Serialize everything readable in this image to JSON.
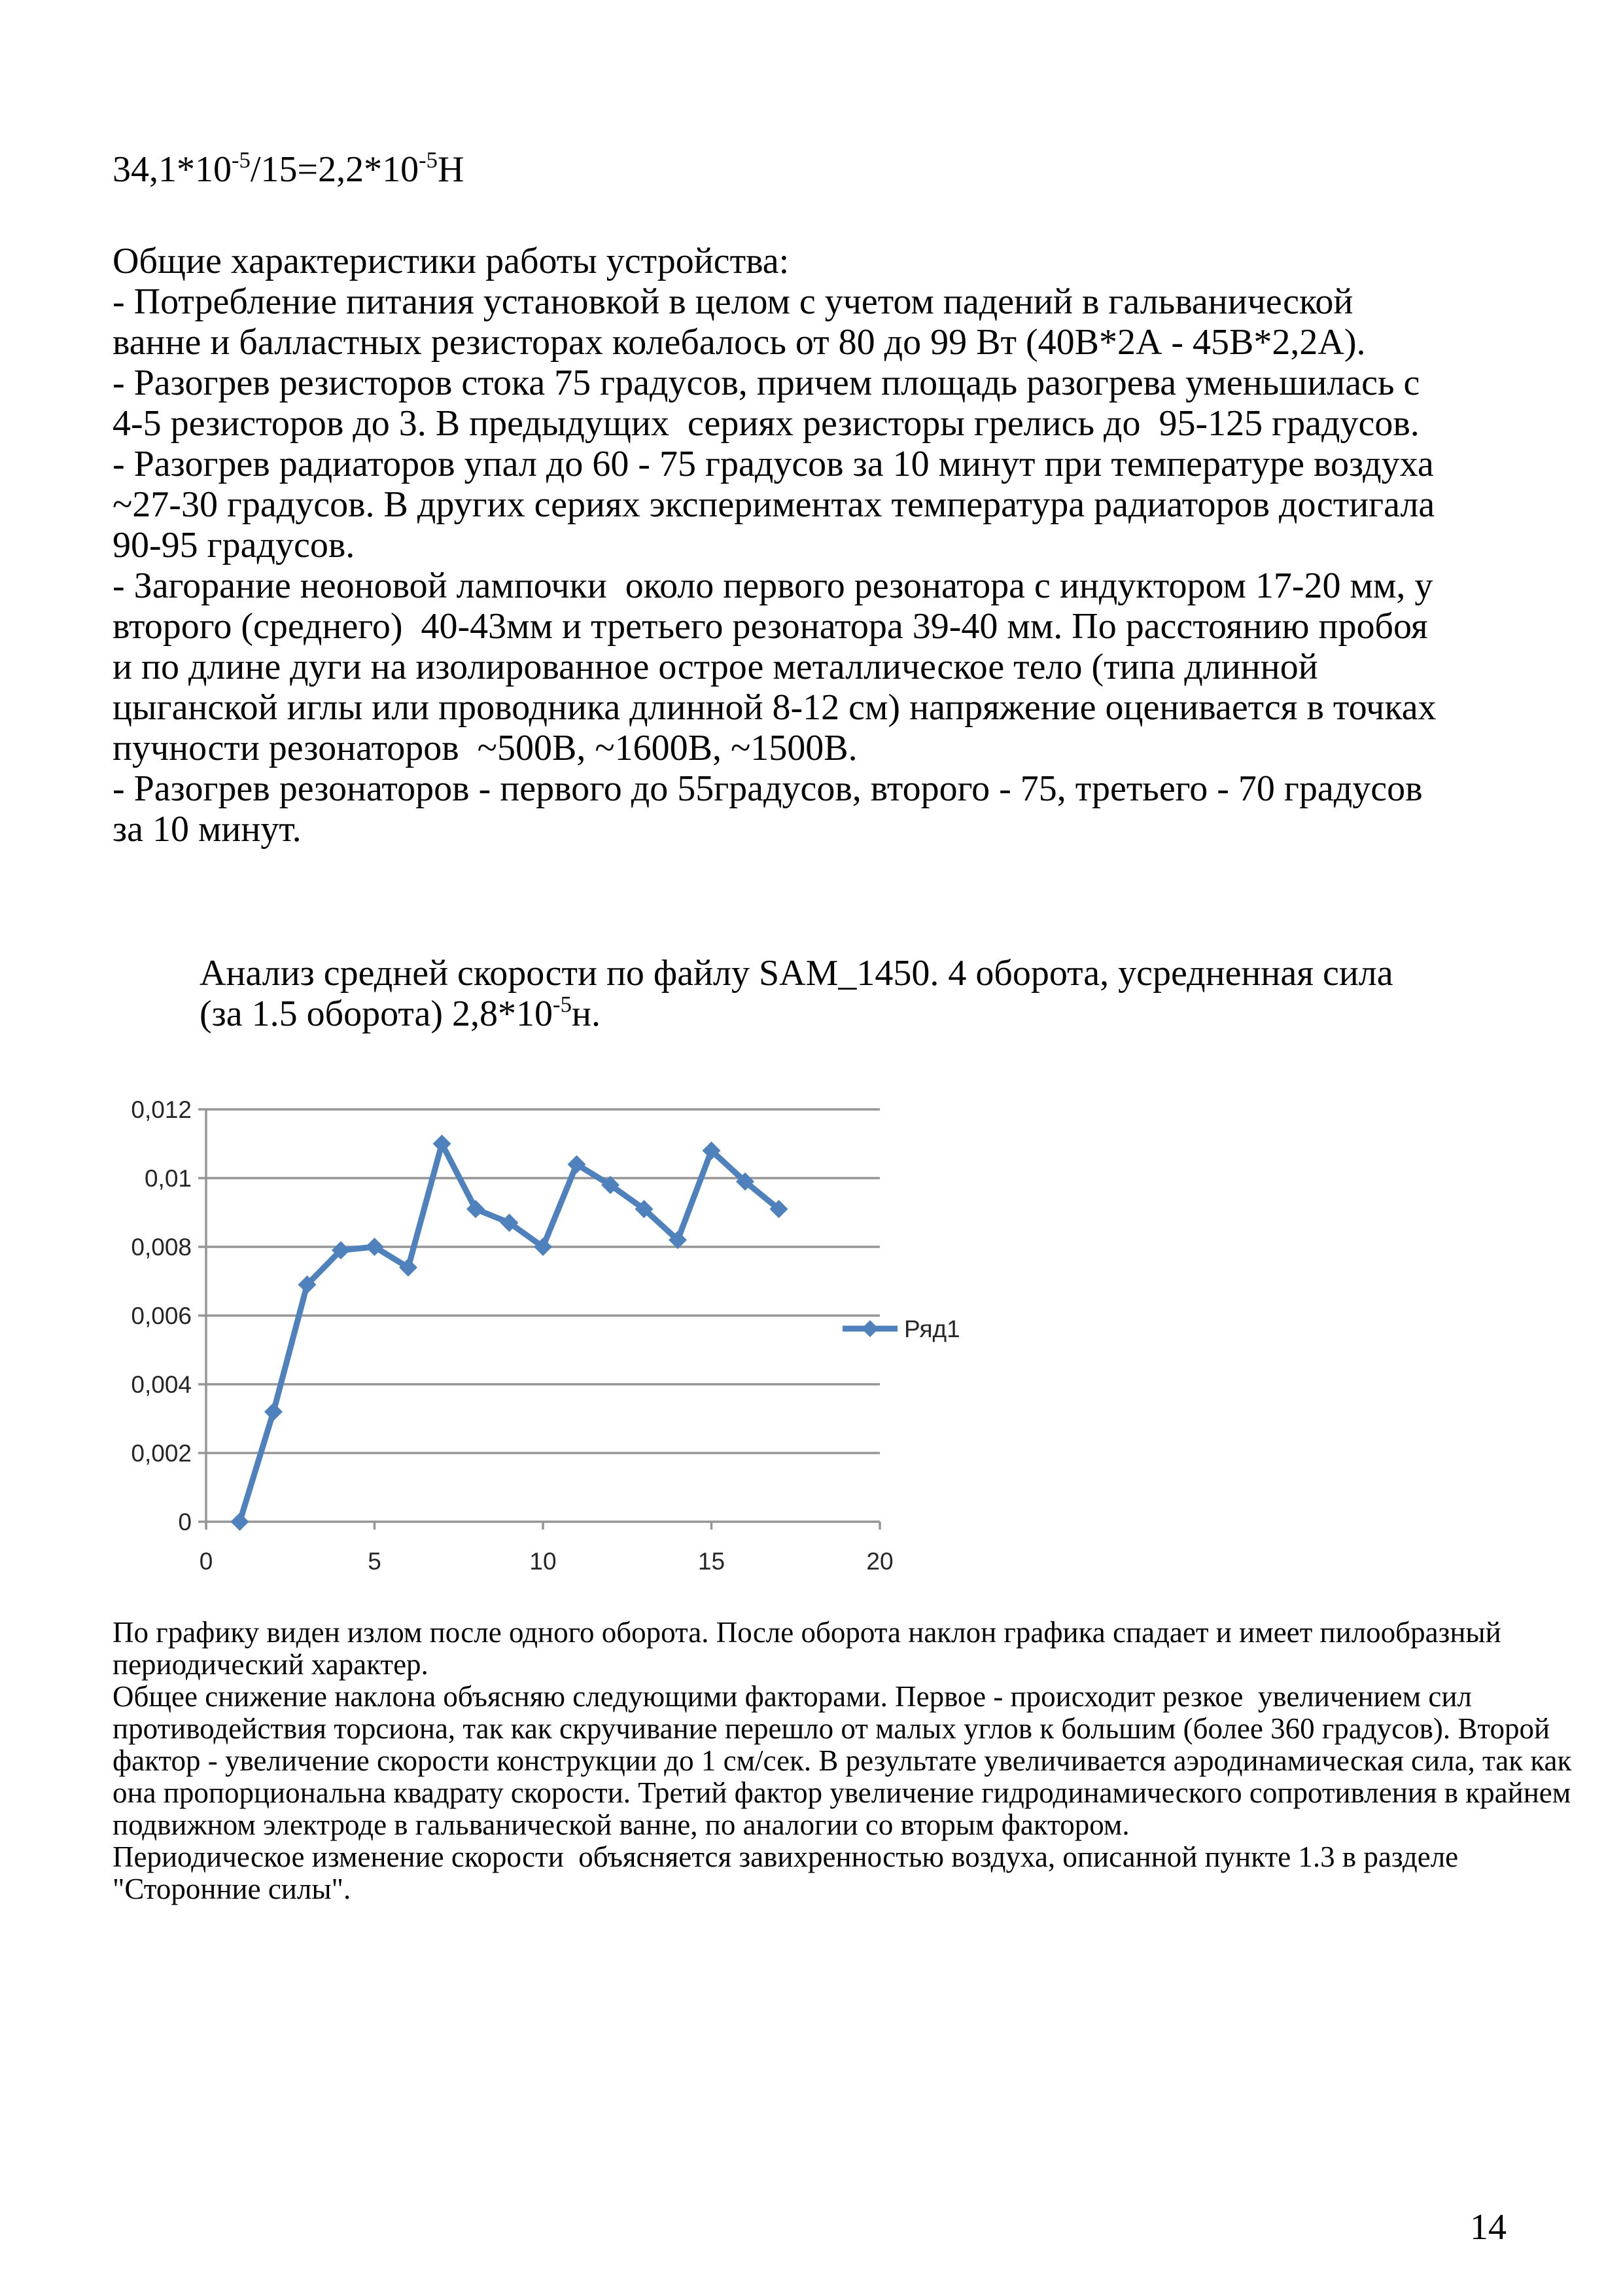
{
  "page": {
    "number": "14"
  },
  "formula": {
    "part1": "34,1*10",
    "sup1": "-5",
    "part2": "/15=2,2*10",
    "sup2": "-5",
    "part3": "Н"
  },
  "body": {
    "heading": "Общие характеристики работы устройства:",
    "lines": [
      "- Потребление питания установкой в целом с учетом падений в гальванической",
      "ванне и балластных резисторах колебалось от 80 до 99 Вт (40В*2А - 45В*2,2А).",
      "- Разогрев резисторов стока 75 градусов, причем площадь разогрева уменьшилась с",
      "4-5 резисторов до 3. В предыдущих  сериях резисторы грелись до  95-125 градусов.",
      "- Разогрев радиаторов упал до 60 - 75 градусов за 10 минут при температуре воздуха",
      "~27-30 градусов. В других сериях экспериментах температура радиаторов достигала",
      "90-95 градусов.",
      "- Загорание неоновой лампочки  около первого резонатора с индуктором 17-20 мм, у",
      "второго (среднего)  40-43мм и третьего резонатора 39-40 мм. По расстоянию пробоя",
      "и по длине дуги на изолированное острое металлическое тело (типа длинной",
      "цыганской иглы или проводника длинной 8-12 см) напряжение оценивается в точках",
      "пучности резонаторов  ~500В, ~1600В, ~1500В.",
      "- Разогрев резонаторов - первого до 55градусов, второго - 75, третьего - 70 градусов",
      "за 10 минут."
    ]
  },
  "analysis": {
    "line1": "Анализ средней скорости по файлу SAM_1450. 4 оборота, усредненная сила",
    "line2_base": "(за 1.5 оборота) 2,8*10",
    "line2_sup": "-5",
    "line2_end": "н."
  },
  "chart_data": {
    "type": "line",
    "title": "",
    "legend_label": "Ряд1",
    "legend_position": "right",
    "grid": true,
    "x": [
      1,
      2,
      3,
      4,
      5,
      6,
      7,
      8,
      9,
      10,
      11,
      12,
      13,
      14,
      15,
      16,
      17
    ],
    "y": [
      0,
      0.0032,
      0.0069,
      0.0079,
      0.008,
      0.0074,
      0.011,
      0.0091,
      0.0087,
      0.008,
      0.0104,
      0.0098,
      0.0091,
      0.0082,
      0.0108,
      0.0099,
      0.0091
    ],
    "xlim": [
      0,
      20
    ],
    "ylim": [
      0,
      0.012
    ],
    "x_tick_values": [
      0,
      5,
      10,
      15,
      20
    ],
    "x_tick_labels": [
      "0",
      "5",
      "10",
      "15",
      "20"
    ],
    "y_tick_values": [
      0,
      0.002,
      0.004,
      0.006,
      0.008,
      0.01,
      0.012
    ],
    "y_tick_labels": [
      "0",
      "0,002",
      "0,004",
      "0,006",
      "0,008",
      "0,01",
      "0,012"
    ],
    "line_color": "#4f81bd",
    "grid_color": "#969696",
    "label_color": "#262626"
  },
  "notes": {
    "lines": [
      "По графику виден излом после одного оборота. После оборота наклон графика спадает и имеет пилообразный",
      "периодический характер.",
      "Общее снижение наклона объясняю следующими факторами. Первое - происходит резкое  увеличением сил",
      "противодействия торсиона, так как скручивание перешло от малых углов к большим (более 360 градусов). Второй",
      "фактор - увеличение скорости конструкции до 1 см/сек. В результате увеличивается аэродинамическая сила, так как",
      "она пропорциональна квадрату скорости. Третий фактор увеличение гидродинамического сопротивления в крайнем",
      "подвижном электроде в гальванической ванне, по аналогии со вторым фактором.",
      "Периодическое изменение скорости  объясняется завихренностью воздуха, описанной пункте 1.3 в разделе",
      "\"Сторонние силы\"."
    ]
  }
}
